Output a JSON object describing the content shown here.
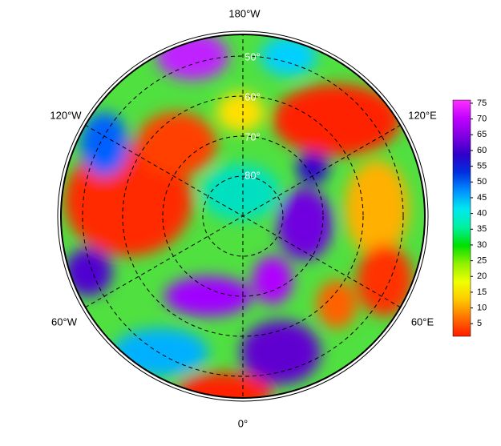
{
  "map": {
    "meridian_labels": [
      "180°W",
      "120°W",
      "120°E",
      "60°W",
      "60°E",
      "0°"
    ],
    "latitude_labels": [
      "50°",
      "60°",
      "70°",
      "80°"
    ],
    "colorbar": {
      "lim": [
        1,
        76
      ],
      "ticks": [
        5,
        10,
        15,
        20,
        25,
        30,
        35,
        40,
        45,
        50,
        55,
        60,
        65,
        70,
        75
      ],
      "colors": [
        "#ff1a00",
        "#ff7000",
        "#ffc800",
        "#f0ff00",
        "#90f000",
        "#00e000",
        "#00f0a0",
        "#00e8f0",
        "#0090ff",
        "#0030e0",
        "#3000c8",
        "#8000e0",
        "#c000ff",
        "#ff30ff"
      ]
    }
  }
}
